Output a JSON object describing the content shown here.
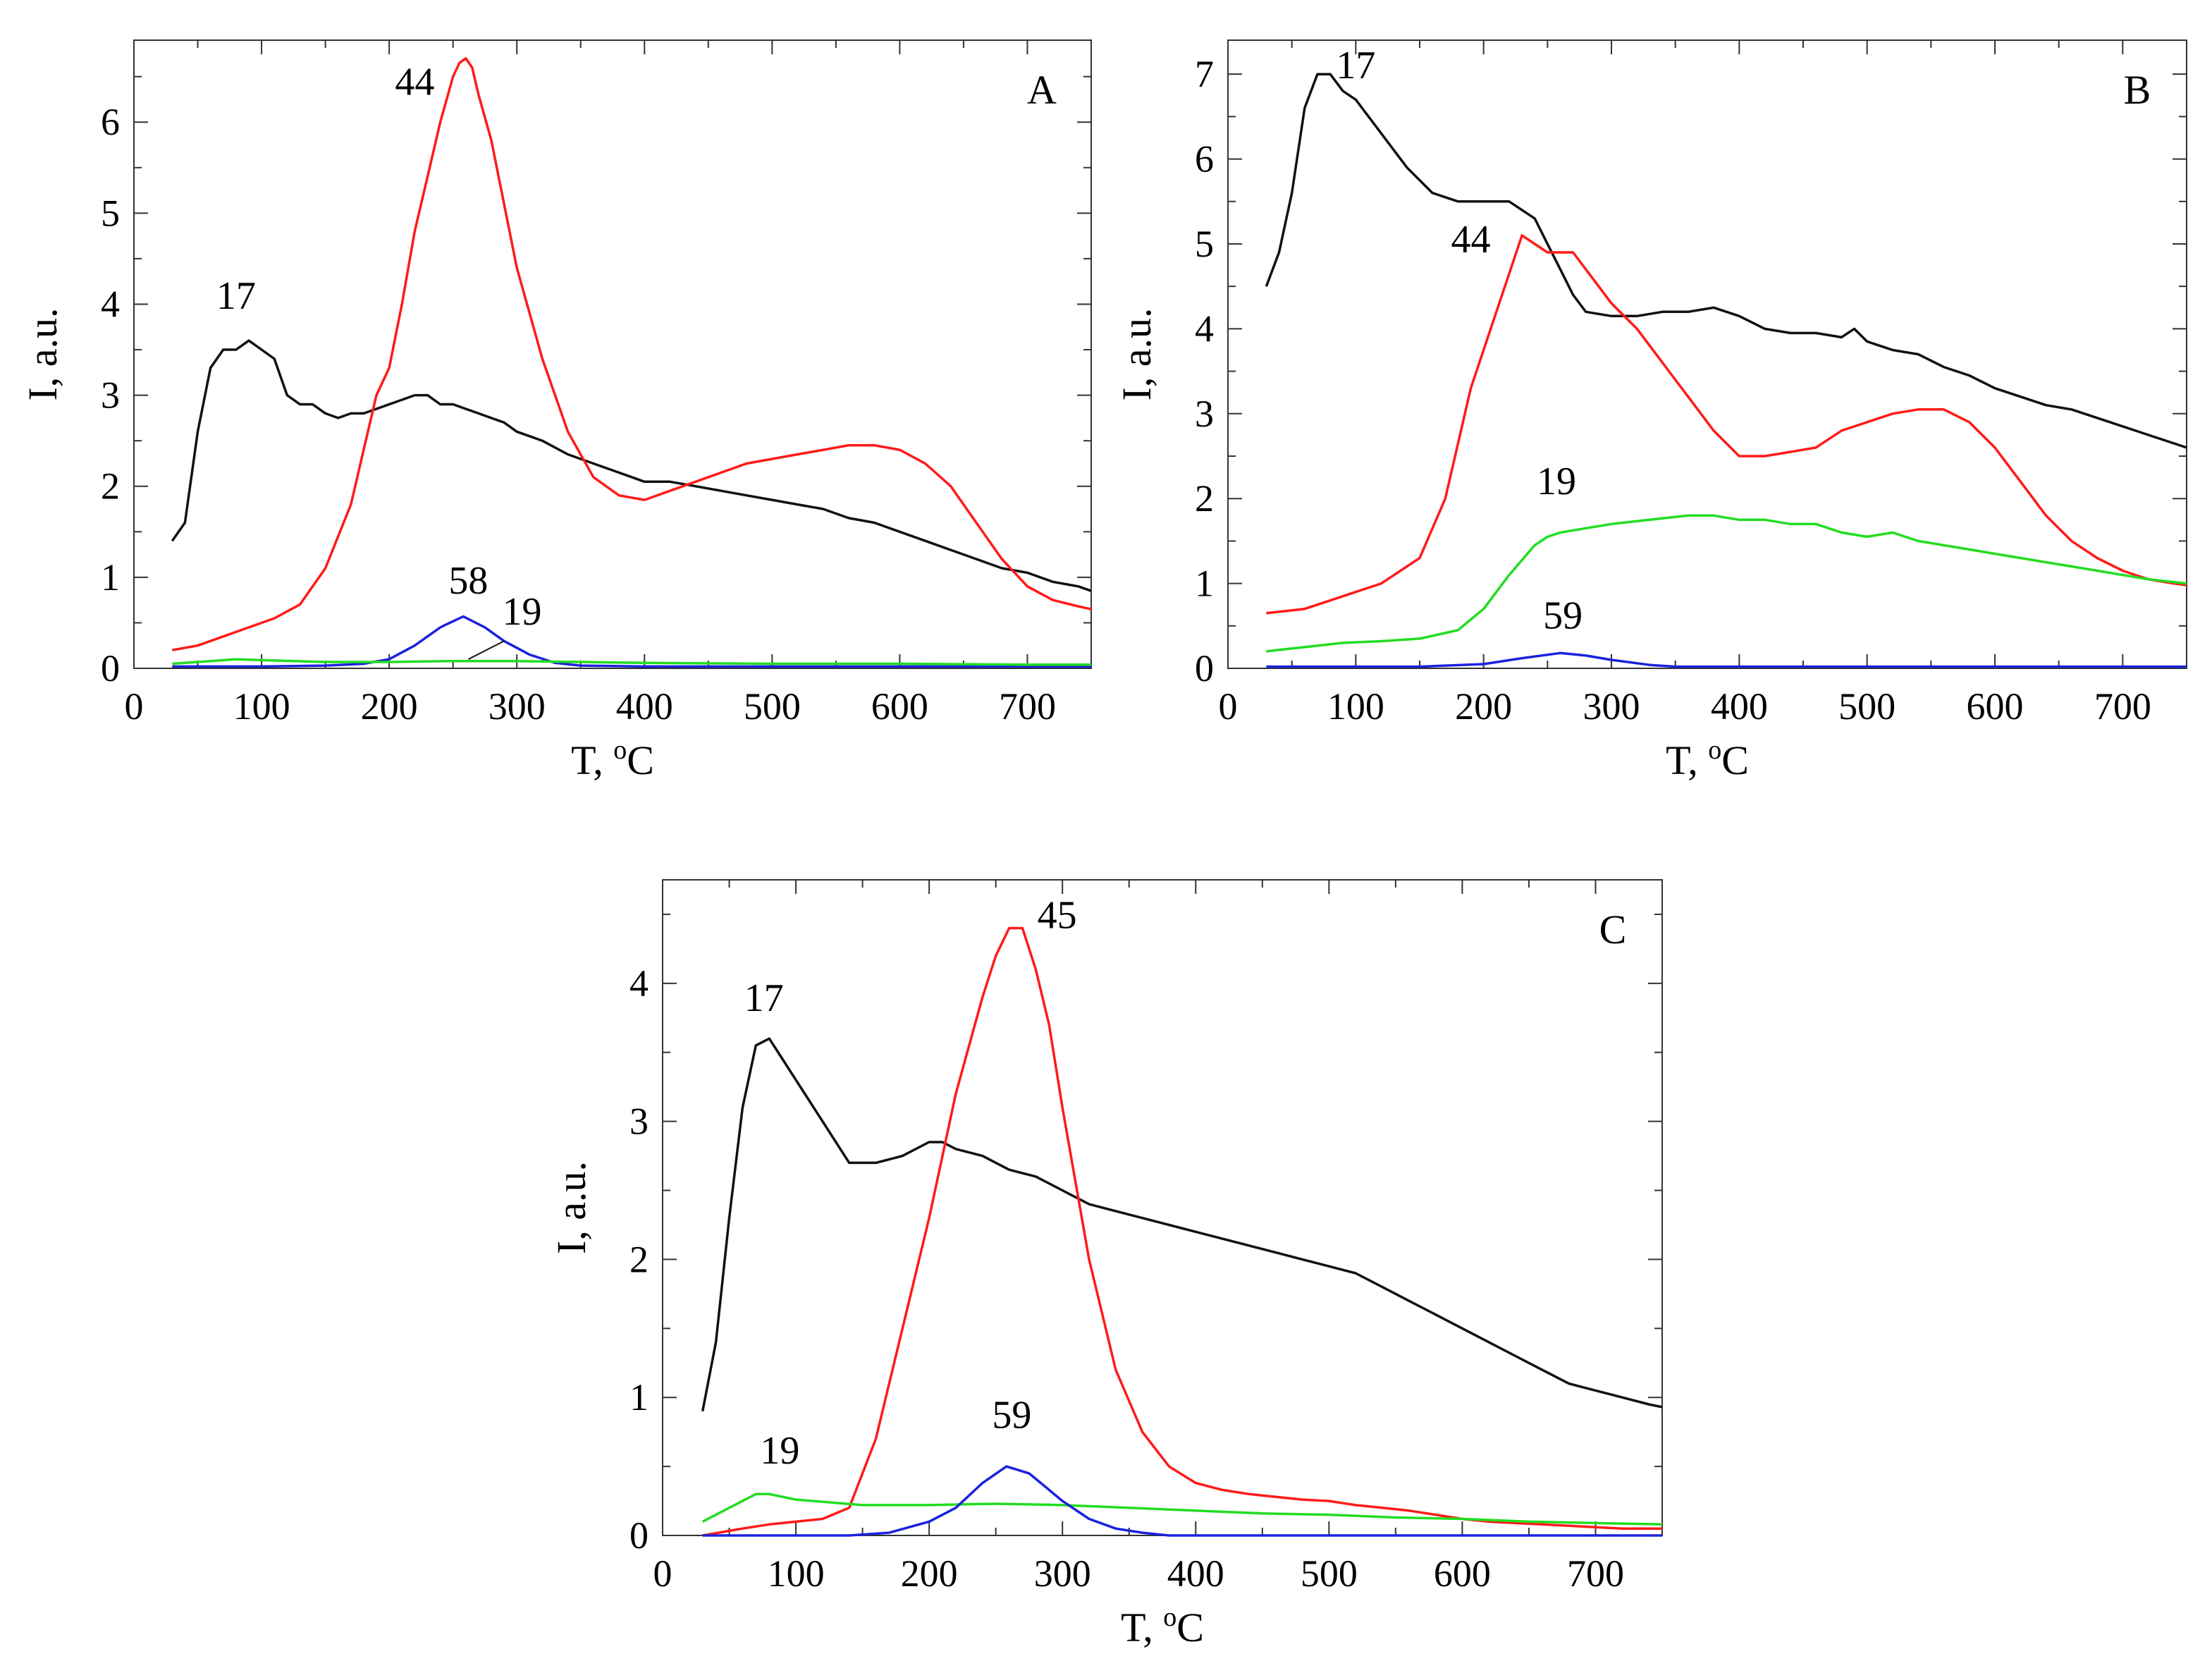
{
  "colors": {
    "black": "#111111",
    "red": "#ff1a1a",
    "green": "#22dd22",
    "blue": "#1a22dd"
  },
  "chart_data": [
    {
      "type": "line",
      "panel_label": "A",
      "xlabel": "T, ",
      "xlabel_super": "o",
      "xlabel_unit": "C",
      "ylabel": "I, a.u.",
      "xlim": [
        0,
        750
      ],
      "ylim": [
        0,
        6.9
      ],
      "x_ticks": [
        0,
        100,
        200,
        300,
        400,
        500,
        600,
        700
      ],
      "y_ticks": [
        0,
        1,
        2,
        3,
        4,
        5,
        6
      ],
      "series": [
        {
          "name": "17",
          "color": "black",
          "label_at": [
            80,
            3.95
          ],
          "x": [
            30,
            40,
            50,
            60,
            70,
            80,
            90,
            100,
            110,
            120,
            130,
            140,
            150,
            160,
            170,
            180,
            190,
            200,
            210,
            220,
            230,
            240,
            250,
            260,
            270,
            280,
            290,
            300,
            320,
            340,
            360,
            380,
            400,
            420,
            440,
            460,
            480,
            500,
            520,
            540,
            560,
            580,
            600,
            620,
            640,
            660,
            680,
            700,
            720,
            740,
            750
          ],
          "y": [
            1.4,
            1.6,
            2.6,
            3.3,
            3.5,
            3.5,
            3.6,
            3.5,
            3.4,
            3.0,
            2.9,
            2.9,
            2.8,
            2.75,
            2.8,
            2.8,
            2.85,
            2.9,
            2.95,
            3.0,
            3.0,
            2.9,
            2.9,
            2.85,
            2.8,
            2.75,
            2.7,
            2.6,
            2.5,
            2.35,
            2.25,
            2.15,
            2.05,
            2.05,
            2.0,
            1.95,
            1.9,
            1.85,
            1.8,
            1.75,
            1.65,
            1.6,
            1.5,
            1.4,
            1.3,
            1.2,
            1.1,
            1.05,
            0.95,
            0.9,
            0.85
          ]
        },
        {
          "name": "44",
          "color": "red",
          "label_at": [
            220,
            6.3
          ],
          "x": [
            30,
            50,
            70,
            90,
            110,
            130,
            150,
            170,
            180,
            190,
            200,
            210,
            220,
            230,
            240,
            250,
            255,
            260,
            265,
            270,
            280,
            290,
            300,
            320,
            340,
            360,
            380,
            400,
            420,
            440,
            460,
            480,
            500,
            520,
            540,
            560,
            580,
            600,
            620,
            640,
            660,
            680,
            700,
            720,
            740,
            750
          ],
          "y": [
            0.2,
            0.25,
            0.35,
            0.45,
            0.55,
            0.7,
            1.1,
            1.8,
            2.4,
            3.0,
            3.3,
            4.0,
            4.8,
            5.4,
            6.0,
            6.5,
            6.65,
            6.7,
            6.6,
            6.3,
            5.8,
            5.1,
            4.4,
            3.4,
            2.6,
            2.1,
            1.9,
            1.85,
            1.95,
            2.05,
            2.15,
            2.25,
            2.3,
            2.35,
            2.4,
            2.45,
            2.45,
            2.4,
            2.25,
            2.0,
            1.6,
            1.2,
            0.9,
            0.75,
            0.68,
            0.65
          ]
        },
        {
          "name": "58",
          "color": "blue",
          "label_at": [
            262,
            0.82
          ],
          "x": [
            30,
            100,
            150,
            180,
            200,
            220,
            240,
            258,
            275,
            290,
            310,
            330,
            350,
            400,
            500,
            600,
            750
          ],
          "y": [
            0.02,
            0.02,
            0.03,
            0.05,
            0.1,
            0.25,
            0.45,
            0.57,
            0.45,
            0.3,
            0.15,
            0.06,
            0.03,
            0.02,
            0.02,
            0.02,
            0.02
          ]
        },
        {
          "name": "19",
          "color": "green",
          "label_at": [
            304,
            0.48
          ],
          "x": [
            30,
            60,
            80,
            100,
            150,
            200,
            250,
            300,
            350,
            400,
            500,
            600,
            700,
            750
          ],
          "y": [
            0.05,
            0.08,
            0.1,
            0.09,
            0.07,
            0.07,
            0.08,
            0.08,
            0.07,
            0.06,
            0.05,
            0.05,
            0.04,
            0.04
          ]
        }
      ]
    },
    {
      "type": "line",
      "panel_label": "B",
      "xlabel": "T, ",
      "xlabel_super": "o",
      "xlabel_unit": "C",
      "ylabel": "I, a.u.",
      "xlim": [
        0,
        750
      ],
      "ylim": [
        0,
        7.4
      ],
      "x_ticks": [
        0,
        100,
        200,
        300,
        400,
        500,
        600,
        700
      ],
      "y_ticks": [
        0,
        1,
        2,
        3,
        4,
        5,
        6,
        7
      ],
      "series": [
        {
          "name": "17",
          "color": "black",
          "label_at": [
            100,
            6.95
          ],
          "x": [
            30,
            40,
            50,
            60,
            70,
            80,
            90,
            100,
            120,
            140,
            160,
            180,
            200,
            220,
            240,
            250,
            260,
            270,
            280,
            300,
            320,
            340,
            360,
            380,
            400,
            420,
            440,
            460,
            480,
            490,
            500,
            520,
            540,
            560,
            580,
            600,
            620,
            640,
            660,
            680,
            700,
            720,
            740,
            750
          ],
          "y": [
            4.5,
            4.9,
            5.6,
            6.6,
            7.0,
            7.0,
            6.8,
            6.7,
            6.3,
            5.9,
            5.6,
            5.5,
            5.5,
            5.5,
            5.3,
            5.0,
            4.7,
            4.4,
            4.2,
            4.15,
            4.15,
            4.2,
            4.2,
            4.25,
            4.15,
            4.0,
            3.95,
            3.95,
            3.9,
            4.0,
            3.85,
            3.75,
            3.7,
            3.55,
            3.45,
            3.3,
            3.2,
            3.1,
            3.05,
            2.95,
            2.85,
            2.75,
            2.65,
            2.6
          ]
        },
        {
          "name": "44",
          "color": "red",
          "label_at": [
            190,
            4.9
          ],
          "x": [
            30,
            60,
            90,
            120,
            150,
            170,
            190,
            210,
            230,
            240,
            250,
            270,
            290,
            300,
            320,
            340,
            360,
            380,
            400,
            420,
            440,
            460,
            480,
            500,
            520,
            540,
            560,
            580,
            600,
            620,
            640,
            660,
            680,
            700,
            720,
            740,
            750
          ],
          "y": [
            0.65,
            0.7,
            0.85,
            1.0,
            1.3,
            2.0,
            3.3,
            4.2,
            5.1,
            5.0,
            4.9,
            4.9,
            4.5,
            4.3,
            4.0,
            3.6,
            3.2,
            2.8,
            2.5,
            2.5,
            2.55,
            2.6,
            2.8,
            2.9,
            3.0,
            3.05,
            3.05,
            2.9,
            2.6,
            2.2,
            1.8,
            1.5,
            1.3,
            1.15,
            1.05,
            1.0,
            0.98
          ]
        },
        {
          "name": "19",
          "color": "green",
          "label_at": [
            257,
            2.05
          ],
          "x": [
            30,
            60,
            90,
            120,
            150,
            180,
            200,
            220,
            240,
            250,
            260,
            280,
            300,
            330,
            360,
            380,
            400,
            420,
            440,
            460,
            480,
            500,
            520,
            540,
            560,
            580,
            600,
            640,
            680,
            720,
            750
          ],
          "y": [
            0.2,
            0.25,
            0.3,
            0.32,
            0.35,
            0.45,
            0.7,
            1.1,
            1.45,
            1.55,
            1.6,
            1.65,
            1.7,
            1.75,
            1.8,
            1.8,
            1.75,
            1.75,
            1.7,
            1.7,
            1.6,
            1.55,
            1.6,
            1.5,
            1.45,
            1.4,
            1.35,
            1.25,
            1.15,
            1.05,
            1.0
          ]
        },
        {
          "name": "59",
          "color": "blue",
          "label_at": [
            262,
            0.47
          ],
          "x": [
            30,
            150,
            200,
            230,
            260,
            280,
            300,
            330,
            350,
            400,
            500,
            750
          ],
          "y": [
            0.02,
            0.02,
            0.05,
            0.12,
            0.18,
            0.15,
            0.1,
            0.04,
            0.02,
            0.02,
            0.02,
            0.02
          ]
        }
      ]
    },
    {
      "type": "line",
      "panel_label": "C",
      "xlabel": "T, ",
      "xlabel_super": "o",
      "xlabel_unit": "C",
      "ylabel": "I, a.u.",
      "xlim": [
        0,
        750
      ],
      "ylim": [
        0,
        4.75
      ],
      "x_ticks": [
        0,
        100,
        200,
        300,
        400,
        500,
        600,
        700
      ],
      "y_ticks": [
        0,
        1,
        2,
        3,
        4
      ],
      "series": [
        {
          "name": "17",
          "color": "black",
          "label_at": [
            76,
            3.8
          ],
          "x": [
            30,
            40,
            50,
            60,
            70,
            80,
            90,
            100,
            120,
            140,
            160,
            180,
            200,
            210,
            220,
            240,
            260,
            280,
            300,
            320,
            340,
            360,
            380,
            400,
            420,
            440,
            460,
            480,
            500,
            520,
            540,
            560,
            580,
            600,
            620,
            640,
            660,
            680,
            700,
            720,
            740,
            750
          ],
          "y": [
            0.9,
            1.4,
            2.3,
            3.1,
            3.55,
            3.6,
            3.45,
            3.3,
            3.0,
            2.7,
            2.7,
            2.75,
            2.85,
            2.85,
            2.8,
            2.75,
            2.65,
            2.6,
            2.5,
            2.4,
            2.35,
            2.3,
            2.25,
            2.2,
            2.15,
            2.1,
            2.05,
            2.0,
            1.95,
            1.9,
            1.8,
            1.7,
            1.6,
            1.5,
            1.4,
            1.3,
            1.2,
            1.1,
            1.05,
            1.0,
            0.95,
            0.93
          ]
        },
        {
          "name": "45",
          "color": "red",
          "label_at": [
            296,
            4.4
          ],
          "x": [
            30,
            60,
            80,
            100,
            120,
            140,
            160,
            180,
            200,
            220,
            240,
            250,
            260,
            270,
            280,
            290,
            300,
            320,
            340,
            360,
            380,
            400,
            420,
            440,
            460,
            480,
            500,
            520,
            540,
            560,
            580,
            600,
            620,
            640,
            660,
            680,
            700,
            720,
            740,
            750
          ],
          "y": [
            0.0,
            0.05,
            0.08,
            0.1,
            0.12,
            0.2,
            0.7,
            1.5,
            2.3,
            3.2,
            3.9,
            4.2,
            4.4,
            4.4,
            4.1,
            3.7,
            3.1,
            2.0,
            1.2,
            0.75,
            0.5,
            0.38,
            0.33,
            0.3,
            0.28,
            0.26,
            0.25,
            0.22,
            0.2,
            0.18,
            0.15,
            0.12,
            0.1,
            0.09,
            0.08,
            0.07,
            0.06,
            0.05,
            0.05,
            0.05
          ]
        },
        {
          "name": "19",
          "color": "green",
          "label_at": [
            88,
            0.52
          ],
          "x": [
            30,
            50,
            70,
            80,
            100,
            150,
            200,
            250,
            300,
            350,
            400,
            450,
            500,
            550,
            600,
            650,
            700,
            750
          ],
          "y": [
            0.1,
            0.2,
            0.3,
            0.3,
            0.26,
            0.22,
            0.22,
            0.23,
            0.22,
            0.2,
            0.18,
            0.16,
            0.15,
            0.13,
            0.12,
            0.1,
            0.09,
            0.08
          ]
        },
        {
          "name": "59",
          "color": "blue",
          "label_at": [
            262,
            0.78
          ],
          "x": [
            30,
            140,
            170,
            200,
            220,
            240,
            258,
            275,
            290,
            300,
            320,
            340,
            360,
            380,
            500,
            750
          ],
          "y": [
            0.0,
            0.0,
            0.02,
            0.1,
            0.2,
            0.38,
            0.5,
            0.45,
            0.33,
            0.25,
            0.12,
            0.05,
            0.02,
            0.0,
            0.0,
            0.0
          ]
        }
      ]
    }
  ]
}
